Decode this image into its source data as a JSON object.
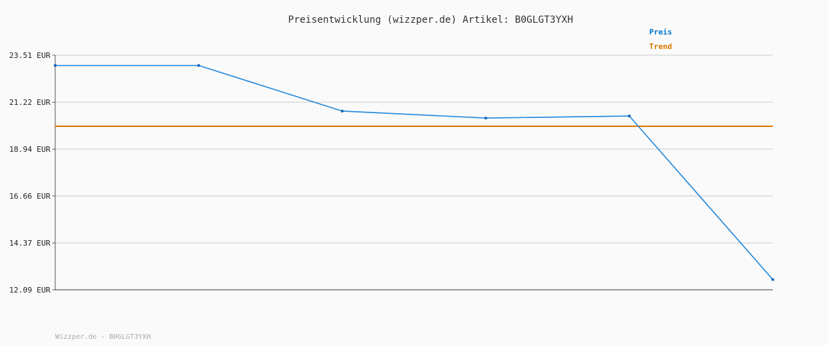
{
  "chart_data": {
    "type": "line",
    "title": "Preisentwicklung (wizzper.de) Artikel: B0GLGT3YXH",
    "xlabel": "",
    "ylabel": "",
    "ylim": [
      12.09,
      23.51
    ],
    "yticks": [
      "23.51 EUR",
      "21.22 EUR",
      "18.94 EUR",
      "16.66 EUR",
      "14.37 EUR",
      "12.09 EUR"
    ],
    "ytick_values": [
      23.51,
      21.22,
      18.94,
      16.66,
      14.37,
      12.09
    ],
    "grid": true,
    "legend_position": "top-right",
    "series": [
      {
        "name": "Preis",
        "color": "#2288dd",
        "values": [
          23.01,
          23.01,
          20.79,
          20.45,
          20.55,
          12.59
        ]
      },
      {
        "name": "Trend",
        "color": "#dd7700",
        "values": [
          20.05,
          20.05
        ]
      }
    ]
  },
  "footer": "Wizzper.de - B0GLGT3YXH",
  "colors": {
    "preis_legend": "#0077cc",
    "trend_legend": "#dd7700",
    "grid": "#e2e2e2",
    "axis": "#555555"
  }
}
